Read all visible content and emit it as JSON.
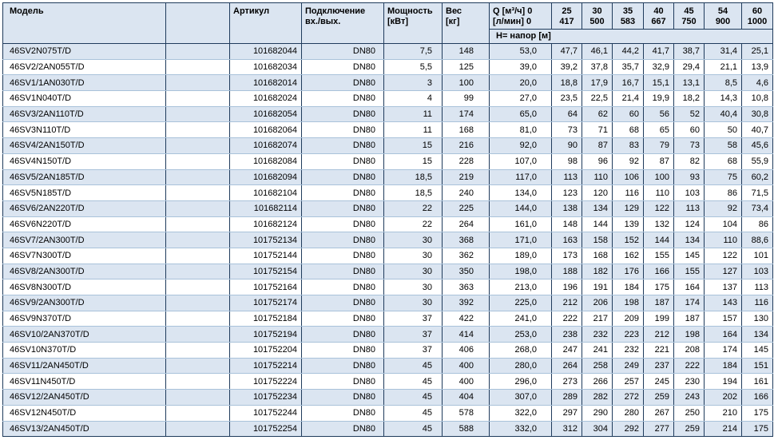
{
  "colors": {
    "header_bg": "#dbe5f1",
    "row_alt_bg": "#dbe5f1",
    "row_bg": "#ffffff",
    "border_dark": "#1f3b5c",
    "border_light": "#a9c2da"
  },
  "table": {
    "headers": {
      "model": "Модель",
      "article": "Артикул",
      "connection_line1": "Подключение",
      "connection_line2": "вх./вых.",
      "power_line1": "Мощность",
      "power_line2": "[кВт]",
      "weight_line1": "Вес",
      "weight_line2": "[кг]",
      "q_line1": "Q [м³/ч] 0",
      "q_line2": "[л/мин] 0",
      "head_label": "Н= напор [м]",
      "flow_m3h": [
        "25",
        "30",
        "35",
        "40",
        "45",
        "54",
        "60"
      ],
      "flow_lmin": [
        "417",
        "500",
        "583",
        "667",
        "750",
        "900",
        "1000"
      ]
    },
    "rows": [
      {
        "model": "46SV2N075T/D",
        "article": "101682044",
        "conn": "DN80",
        "power": "7,5",
        "weight": "148",
        "h": [
          "53,0",
          "47,7",
          "46,1",
          "44,2",
          "41,7",
          "38,7",
          "31,4",
          "25,1"
        ]
      },
      {
        "model": "46SV2/2AN055T/D",
        "article": "101682034",
        "conn": "DN80",
        "power": "5,5",
        "weight": "125",
        "h": [
          "39,0",
          "39,2",
          "37,8",
          "35,7",
          "32,9",
          "29,4",
          "21,1",
          "13,9"
        ]
      },
      {
        "model": "46SV1/1AN030T/D",
        "article": "101682014",
        "conn": "DN80",
        "power": "3",
        "weight": "100",
        "h": [
          "20,0",
          "18,8",
          "17,9",
          "16,7",
          "15,1",
          "13,1",
          "8,5",
          "4,6"
        ]
      },
      {
        "model": "46SV1N040T/D",
        "article": "101682024",
        "conn": "DN80",
        "power": "4",
        "weight": "99",
        "h": [
          "27,0",
          "23,5",
          "22,5",
          "21,4",
          "19,9",
          "18,2",
          "14,3",
          "10,8"
        ]
      },
      {
        "model": "46SV3/2AN110T/D",
        "article": "101682054",
        "conn": "DN80",
        "power": "11",
        "weight": "174",
        "h": [
          "65,0",
          "64",
          "62",
          "60",
          "56",
          "52",
          "40,4",
          "30,8"
        ]
      },
      {
        "model": "46SV3N110T/D",
        "article": "101682064",
        "conn": "DN80",
        "power": "11",
        "weight": "168",
        "h": [
          "81,0",
          "73",
          "71",
          "68",
          "65",
          "60",
          "50",
          "40,7"
        ]
      },
      {
        "model": "46SV4/2AN150T/D",
        "article": "101682074",
        "conn": "DN80",
        "power": "15",
        "weight": "216",
        "h": [
          "92,0",
          "90",
          "87",
          "83",
          "79",
          "73",
          "58",
          "45,6"
        ]
      },
      {
        "model": "46SV4N150T/D",
        "article": "101682084",
        "conn": "DN80",
        "power": "15",
        "weight": "228",
        "h": [
          "107,0",
          "98",
          "96",
          "92",
          "87",
          "82",
          "68",
          "55,9"
        ]
      },
      {
        "model": "46SV5/2AN185T/D",
        "article": "101682094",
        "conn": "DN80",
        "power": "18,5",
        "weight": "219",
        "h": [
          "117,0",
          "113",
          "110",
          "106",
          "100",
          "93",
          "75",
          "60,2"
        ]
      },
      {
        "model": "46SV5N185T/D",
        "article": "101682104",
        "conn": "DN80",
        "power": "18,5",
        "weight": "240",
        "h": [
          "134,0",
          "123",
          "120",
          "116",
          "110",
          "103",
          "86",
          "71,5"
        ]
      },
      {
        "model": "46SV6/2AN220T/D",
        "article": "101682114",
        "conn": "DN80",
        "power": "22",
        "weight": "225",
        "h": [
          "144,0",
          "138",
          "134",
          "129",
          "122",
          "113",
          "92",
          "73,4"
        ]
      },
      {
        "model": "46SV6N220T/D",
        "article": "101682124",
        "conn": "DN80",
        "power": "22",
        "weight": "264",
        "h": [
          "161,0",
          "148",
          "144",
          "139",
          "132",
          "124",
          "104",
          "86"
        ]
      },
      {
        "model": "46SV7/2AN300T/D",
        "article": "101752134",
        "conn": "DN80",
        "power": "30",
        "weight": "368",
        "h": [
          "171,0",
          "163",
          "158",
          "152",
          "144",
          "134",
          "110",
          "88,6"
        ]
      },
      {
        "model": "46SV7N300T/D",
        "article": "101752144",
        "conn": "DN80",
        "power": "30",
        "weight": "362",
        "h": [
          "189,0",
          "173",
          "168",
          "162",
          "155",
          "145",
          "122",
          "101"
        ]
      },
      {
        "model": "46SV8/2AN300T/D",
        "article": "101752154",
        "conn": "DN80",
        "power": "30",
        "weight": "350",
        "h": [
          "198,0",
          "188",
          "182",
          "176",
          "166",
          "155",
          "127",
          "103"
        ]
      },
      {
        "model": "46SV8N300T/D",
        "article": "101752164",
        "conn": "DN80",
        "power": "30",
        "weight": "363",
        "h": [
          "213,0",
          "196",
          "191",
          "184",
          "175",
          "164",
          "137",
          "113"
        ]
      },
      {
        "model": "46SV9/2AN300T/D",
        "article": "101752174",
        "conn": "DN80",
        "power": "30",
        "weight": "392",
        "h": [
          "225,0",
          "212",
          "206",
          "198",
          "187",
          "174",
          "143",
          "116"
        ]
      },
      {
        "model": "46SV9N370T/D",
        "article": "101752184",
        "conn": "DN80",
        "power": "37",
        "weight": "422",
        "h": [
          "241,0",
          "222",
          "217",
          "209",
          "199",
          "187",
          "157",
          "130"
        ]
      },
      {
        "model": "46SV10/2AN370T/D",
        "article": "101752194",
        "conn": "DN80",
        "power": "37",
        "weight": "414",
        "h": [
          "253,0",
          "238",
          "232",
          "223",
          "212",
          "198",
          "164",
          "134"
        ]
      },
      {
        "model": "46SV10N370T/D",
        "article": "101752204",
        "conn": "DN80",
        "power": "37",
        "weight": "406",
        "h": [
          "268,0",
          "247",
          "241",
          "232",
          "221",
          "208",
          "174",
          "145"
        ]
      },
      {
        "model": "46SV11/2AN450T/D",
        "article": "101752214",
        "conn": "DN80",
        "power": "45",
        "weight": "400",
        "h": [
          "280,0",
          "264",
          "258",
          "249",
          "237",
          "222",
          "184",
          "151"
        ]
      },
      {
        "model": "46SV11N450T/D",
        "article": "101752224",
        "conn": "DN80",
        "power": "45",
        "weight": "400",
        "h": [
          "296,0",
          "273",
          "266",
          "257",
          "245",
          "230",
          "194",
          "161"
        ]
      },
      {
        "model": "46SV12/2AN450T/D",
        "article": "101752234",
        "conn": "DN80",
        "power": "45",
        "weight": "404",
        "h": [
          "307,0",
          "289",
          "282",
          "272",
          "259",
          "243",
          "202",
          "166"
        ]
      },
      {
        "model": "46SV12N450T/D",
        "article": "101752244",
        "conn": "DN80",
        "power": "45",
        "weight": "578",
        "h": [
          "322,0",
          "297",
          "290",
          "280",
          "267",
          "250",
          "210",
          "175"
        ]
      },
      {
        "model": "46SV13/2AN450T/D",
        "article": "101752254",
        "conn": "DN80",
        "power": "45",
        "weight": "588",
        "h": [
          "332,0",
          "312",
          "304",
          "292",
          "277",
          "259",
          "214",
          "175"
        ]
      }
    ]
  }
}
